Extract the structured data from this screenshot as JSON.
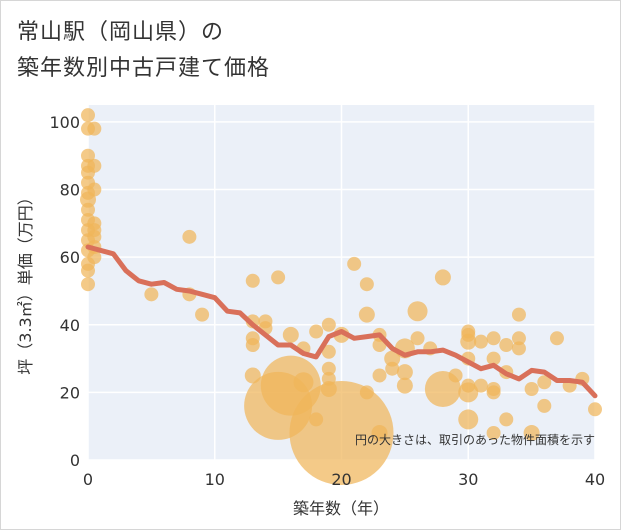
{
  "title_line1": "常山駅（岡山県）の",
  "title_line2": "築年数別中古戸建て価格",
  "chart_data": {
    "type": "scatter",
    "title": "常山駅（岡山県）の築年数別中古戸建て価格",
    "xlabel": "築年数（年）",
    "ylabel": "坪（3.3㎡）単価（万円）",
    "xlim": [
      0,
      40
    ],
    "ylim": [
      0,
      105
    ],
    "xticks": [
      "0",
      "10",
      "20",
      "30",
      "40"
    ],
    "yticks": [
      "0",
      "20",
      "40",
      "60",
      "80",
      "100"
    ],
    "grid": true,
    "note": "円の大きさは、取引のあった物件面積を示す",
    "colors": {
      "bubble": "#f0b55a",
      "line": "#d9705a"
    },
    "bubbles": [
      {
        "x": 0,
        "y": 102,
        "s": 7
      },
      {
        "x": 0,
        "y": 98,
        "s": 7
      },
      {
        "x": 0,
        "y": 90,
        "s": 7
      },
      {
        "x": 0,
        "y": 87,
        "s": 7
      },
      {
        "x": 0,
        "y": 85,
        "s": 7
      },
      {
        "x": 0,
        "y": 82,
        "s": 7
      },
      {
        "x": 0,
        "y": 79,
        "s": 7
      },
      {
        "x": 0,
        "y": 77,
        "s": 8
      },
      {
        "x": 0,
        "y": 74,
        "s": 7
      },
      {
        "x": 0,
        "y": 71,
        "s": 7
      },
      {
        "x": 0,
        "y": 68,
        "s": 7
      },
      {
        "x": 0,
        "y": 65,
        "s": 7
      },
      {
        "x": 0,
        "y": 62,
        "s": 7
      },
      {
        "x": 0,
        "y": 58,
        "s": 7
      },
      {
        "x": 0,
        "y": 56,
        "s": 7
      },
      {
        "x": 0,
        "y": 52,
        "s": 7
      },
      {
        "x": 0.5,
        "y": 98,
        "s": 7
      },
      {
        "x": 0.5,
        "y": 87,
        "s": 7
      },
      {
        "x": 0.5,
        "y": 80,
        "s": 7
      },
      {
        "x": 0.5,
        "y": 70,
        "s": 7
      },
      {
        "x": 0.5,
        "y": 68,
        "s": 7
      },
      {
        "x": 0.5,
        "y": 66,
        "s": 7
      },
      {
        "x": 0.5,
        "y": 63,
        "s": 7
      },
      {
        "x": 0.5,
        "y": 60,
        "s": 7
      },
      {
        "x": 5,
        "y": 49,
        "s": 7
      },
      {
        "x": 8,
        "y": 66,
        "s": 7
      },
      {
        "x": 8,
        "y": 49,
        "s": 7
      },
      {
        "x": 9,
        "y": 43,
        "s": 7
      },
      {
        "x": 13,
        "y": 53,
        "s": 7
      },
      {
        "x": 13,
        "y": 41,
        "s": 7
      },
      {
        "x": 13,
        "y": 36,
        "s": 7
      },
      {
        "x": 13,
        "y": 34,
        "s": 7
      },
      {
        "x": 13,
        "y": 25,
        "s": 8
      },
      {
        "x": 14,
        "y": 41,
        "s": 7
      },
      {
        "x": 14,
        "y": 39,
        "s": 7
      },
      {
        "x": 15,
        "y": 54,
        "s": 7
      },
      {
        "x": 15,
        "y": 16,
        "s": 34
      },
      {
        "x": 16,
        "y": 22,
        "s": 30
      },
      {
        "x": 16,
        "y": 37,
        "s": 8
      },
      {
        "x": 17,
        "y": 33,
        "s": 7
      },
      {
        "x": 17,
        "y": 23,
        "s": 10
      },
      {
        "x": 18,
        "y": 38,
        "s": 7
      },
      {
        "x": 18,
        "y": 12,
        "s": 7
      },
      {
        "x": 19,
        "y": 40,
        "s": 7
      },
      {
        "x": 19,
        "y": 32,
        "s": 7
      },
      {
        "x": 19,
        "y": 27,
        "s": 7
      },
      {
        "x": 19,
        "y": 24,
        "s": 7
      },
      {
        "x": 19,
        "y": 21,
        "s": 8
      },
      {
        "x": 20,
        "y": 8,
        "s": 52
      },
      {
        "x": 20,
        "y": 37,
        "s": 8
      },
      {
        "x": 21,
        "y": 58,
        "s": 7
      },
      {
        "x": 22,
        "y": 52,
        "s": 7
      },
      {
        "x": 22,
        "y": 43,
        "s": 8
      },
      {
        "x": 22,
        "y": 20,
        "s": 7
      },
      {
        "x": 23,
        "y": 37,
        "s": 7
      },
      {
        "x": 23,
        "y": 34,
        "s": 7
      },
      {
        "x": 23,
        "y": 25,
        "s": 7
      },
      {
        "x": 23,
        "y": 8,
        "s": 8
      },
      {
        "x": 24,
        "y": 30,
        "s": 8
      },
      {
        "x": 24,
        "y": 27,
        "s": 7
      },
      {
        "x": 25,
        "y": 33,
        "s": 10
      },
      {
        "x": 25,
        "y": 26,
        "s": 8
      },
      {
        "x": 25,
        "y": 22,
        "s": 8
      },
      {
        "x": 26,
        "y": 44,
        "s": 10
      },
      {
        "x": 26,
        "y": 36,
        "s": 7
      },
      {
        "x": 27,
        "y": 33,
        "s": 7
      },
      {
        "x": 28,
        "y": 54,
        "s": 8
      },
      {
        "x": 28,
        "y": 21,
        "s": 18
      },
      {
        "x": 29,
        "y": 25,
        "s": 7
      },
      {
        "x": 30,
        "y": 38,
        "s": 7
      },
      {
        "x": 30,
        "y": 37,
        "s": 7
      },
      {
        "x": 30,
        "y": 35,
        "s": 8
      },
      {
        "x": 30,
        "y": 30,
        "s": 7
      },
      {
        "x": 30,
        "y": 22,
        "s": 7
      },
      {
        "x": 30,
        "y": 20,
        "s": 10
      },
      {
        "x": 30,
        "y": 12,
        "s": 10
      },
      {
        "x": 31,
        "y": 35,
        "s": 7
      },
      {
        "x": 31,
        "y": 22,
        "s": 7
      },
      {
        "x": 32,
        "y": 36,
        "s": 7
      },
      {
        "x": 32,
        "y": 30,
        "s": 7
      },
      {
        "x": 32,
        "y": 21,
        "s": 7
      },
      {
        "x": 32,
        "y": 20,
        "s": 7
      },
      {
        "x": 32,
        "y": 8,
        "s": 7
      },
      {
        "x": 33,
        "y": 34,
        "s": 7
      },
      {
        "x": 33,
        "y": 26,
        "s": 7
      },
      {
        "x": 33,
        "y": 12,
        "s": 7
      },
      {
        "x": 34,
        "y": 43,
        "s": 7
      },
      {
        "x": 34,
        "y": 36,
        "s": 7
      },
      {
        "x": 34,
        "y": 33,
        "s": 7
      },
      {
        "x": 35,
        "y": 21,
        "s": 7
      },
      {
        "x": 35,
        "y": 8,
        "s": 8
      },
      {
        "x": 36,
        "y": 23,
        "s": 7
      },
      {
        "x": 36,
        "y": 16,
        "s": 7
      },
      {
        "x": 37,
        "y": 36,
        "s": 7
      },
      {
        "x": 38,
        "y": 22,
        "s": 7
      },
      {
        "x": 39,
        "y": 24,
        "s": 7
      },
      {
        "x": 40,
        "y": 15,
        "s": 7
      }
    ],
    "trend": {
      "x": [
        0,
        1,
        2,
        3,
        4,
        5,
        6,
        7,
        8,
        9,
        10,
        11,
        12,
        13,
        14,
        15,
        16,
        17,
        18,
        19,
        20,
        21,
        22,
        23,
        24,
        25,
        26,
        27,
        28,
        29,
        30,
        31,
        32,
        33,
        34,
        35,
        36,
        37,
        38,
        39,
        40
      ],
      "y": [
        63,
        62,
        61,
        56,
        53,
        52,
        52.5,
        50.5,
        50,
        49,
        48,
        44,
        43.5,
        40,
        37,
        34,
        34,
        31.5,
        30.5,
        36.5,
        38,
        36,
        36.5,
        37,
        33,
        31,
        32,
        32,
        32.5,
        31,
        29,
        27,
        28,
        25.5,
        24,
        26.5,
        26,
        23.5,
        23.5,
        23,
        19
      ]
    }
  }
}
